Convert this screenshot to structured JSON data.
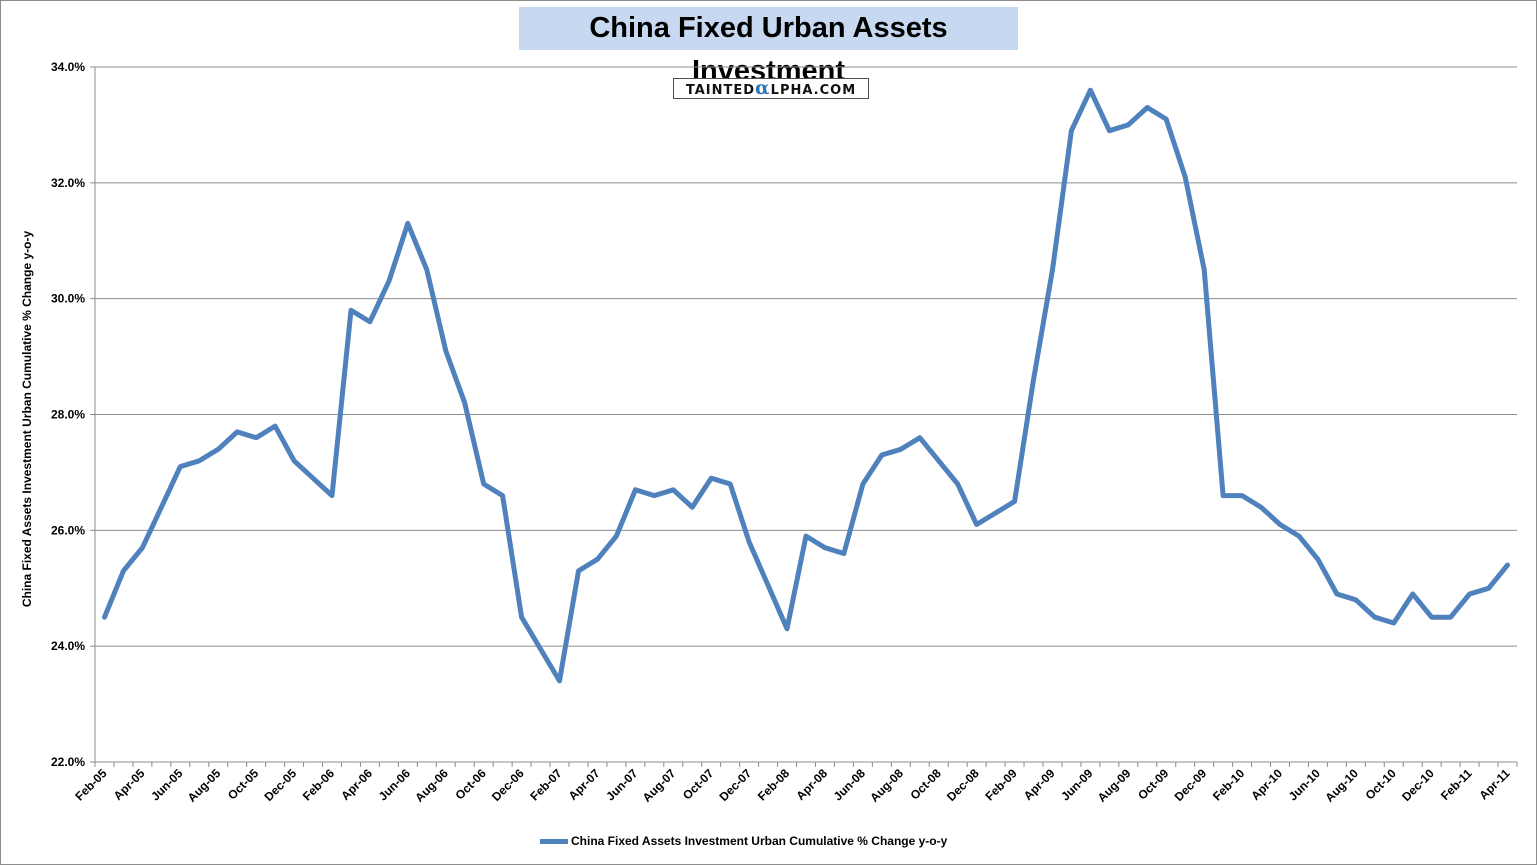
{
  "chart_data": {
    "type": "line",
    "title": "China Fixed Urban Assets Investment",
    "ylabel": "China Fixed Assets Investment Urban Cumulative % Change y-o-y",
    "xlabel": "",
    "ylim": [
      22,
      34
    ],
    "y_ticks": [
      "22.0%",
      "24.0%",
      "26.0%",
      "28.0%",
      "30.0%",
      "32.0%",
      "34.0%"
    ],
    "grid": true,
    "legend_position": "bottom",
    "x": [
      "Feb-05",
      "Mar-05",
      "Apr-05",
      "May-05",
      "Jun-05",
      "Jul-05",
      "Aug-05",
      "Sep-05",
      "Oct-05",
      "Nov-05",
      "Dec-05",
      "Jan-06",
      "Feb-06",
      "Mar-06",
      "Apr-06",
      "May-06",
      "Jun-06",
      "Jul-06",
      "Aug-06",
      "Sep-06",
      "Oct-06",
      "Nov-06",
      "Dec-06",
      "Jan-07",
      "Feb-07",
      "Mar-07",
      "Apr-07",
      "May-07",
      "Jun-07",
      "Jul-07",
      "Aug-07",
      "Sep-07",
      "Oct-07",
      "Nov-07",
      "Dec-07",
      "Jan-08",
      "Feb-08",
      "Mar-08",
      "Apr-08",
      "May-08",
      "Jun-08",
      "Jul-08",
      "Aug-08",
      "Sep-08",
      "Oct-08",
      "Nov-08",
      "Dec-08",
      "Jan-09",
      "Feb-09",
      "Mar-09",
      "Apr-09",
      "May-09",
      "Jun-09",
      "Jul-09",
      "Aug-09",
      "Sep-09",
      "Oct-09",
      "Nov-09",
      "Dec-09",
      "Jan-10",
      "Feb-10",
      "Mar-10",
      "Apr-10",
      "May-10",
      "Jun-10",
      "Jul-10",
      "Aug-10",
      "Sep-10",
      "Oct-10",
      "Nov-10",
      "Dec-10",
      "Jan-11",
      "Feb-11",
      "Mar-11",
      "Apr-11"
    ],
    "tick_labels": [
      "Feb-05",
      "Apr-05",
      "Jun-05",
      "Aug-05",
      "Oct-05",
      "Dec-05",
      "Feb-06",
      "Apr-06",
      "Jun-06",
      "Aug-06",
      "Oct-06",
      "Dec-06",
      "Feb-07",
      "Apr-07",
      "Jun-07",
      "Aug-07",
      "Oct-07",
      "Dec-07",
      "Feb-08",
      "Apr-08",
      "Jun-08",
      "Aug-08",
      "Oct-08",
      "Dec-08",
      "Feb-09",
      "Apr-09",
      "Jun-09",
      "Aug-09",
      "Oct-09",
      "Dec-09",
      "Feb-10",
      "Apr-10",
      "Jun-10",
      "Aug-10",
      "Oct-10",
      "Dec-10",
      "Feb-11",
      "Apr-11"
    ],
    "series": [
      {
        "name": "China Fixed Assets Investment Urban Cumulative % Change y-o-y",
        "color": "#4f81bd",
        "values": [
          24.5,
          25.3,
          25.7,
          26.4,
          27.1,
          27.2,
          27.4,
          27.7,
          27.6,
          27.8,
          27.2,
          26.9,
          26.6,
          29.8,
          29.6,
          30.3,
          31.3,
          30.5,
          29.1,
          28.2,
          26.8,
          26.6,
          24.5,
          23.95,
          23.4,
          25.3,
          25.5,
          25.9,
          26.7,
          26.6,
          26.7,
          26.4,
          26.9,
          26.8,
          25.8,
          25.05,
          24.3,
          25.9,
          25.7,
          25.6,
          26.8,
          27.3,
          27.4,
          27.6,
          27.2,
          26.8,
          26.1,
          26.3,
          26.5,
          28.6,
          30.5,
          32.9,
          33.6,
          32.9,
          33.0,
          33.3,
          33.1,
          32.1,
          30.5,
          26.6,
          26.6,
          26.4,
          26.1,
          25.9,
          25.5,
          24.9,
          24.8,
          24.5,
          24.4,
          24.9,
          24.5,
          24.5,
          24.9,
          25.0,
          25.4
        ]
      }
    ]
  },
  "watermark": {
    "pre": "TAINTED",
    "alpha": "α",
    "post": "LPHA.COM"
  }
}
